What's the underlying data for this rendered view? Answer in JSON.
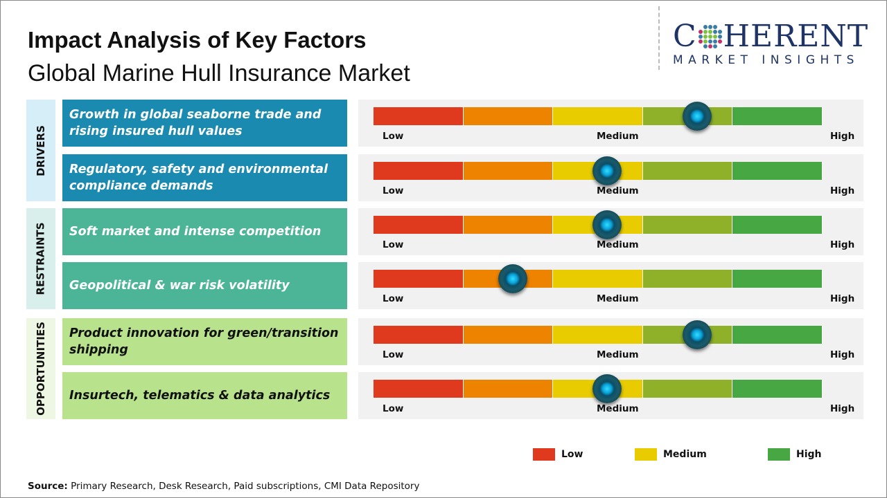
{
  "title": "Impact Analysis of Key Factors",
  "subtitle": "Global Marine Hull Insurance Market",
  "logo": {
    "word": "COHERENT",
    "tagline": "MARKET INSIGHTS"
  },
  "chart_data": {
    "type": "gauge",
    "scale_labels": [
      "Low",
      "Medium",
      "High"
    ],
    "segment_colors": [
      "#e03a1e",
      "#ee8300",
      "#e8cc00",
      "#8fb12a",
      "#47a843"
    ],
    "categories": [
      {
        "name": "DRIVERS",
        "bg": "#d6eef8",
        "box": "#1a8ab0",
        "text": "#ffffff",
        "factors": [
          {
            "label": "Growth in global seaborne trade and rising insured hull values",
            "impact": 0.72
          },
          {
            "label": "Regulatory, safety and environmental compliance demands",
            "impact": 0.52
          }
        ]
      },
      {
        "name": "RESTRAINTS",
        "bg": "#d9efeb",
        "box": "#4db597",
        "text": "#ffffff",
        "factors": [
          {
            "label": "Soft market and intense competition",
            "impact": 0.52
          },
          {
            "label": "Geopolitical & war risk volatility",
            "impact": 0.31
          }
        ]
      },
      {
        "name": "OPPORTUNITIES",
        "bg": "#edf7e3",
        "box": "#b8e28c",
        "text": "#111111",
        "factors": [
          {
            "label": "Product innovation for green/transition shipping",
            "impact": 0.72
          },
          {
            "label": "Insurtech, telematics & data analytics",
            "impact": 0.52
          }
        ]
      }
    ],
    "legend": [
      {
        "label": "Low",
        "color": "#e03a1e"
      },
      {
        "label": "Medium",
        "color": "#e8cc00"
      },
      {
        "label": "High",
        "color": "#47a843"
      }
    ]
  },
  "source": {
    "prefix": "Source:",
    "text": " Primary Research, Desk Research, Paid subscriptions, CMI Data Repository"
  }
}
